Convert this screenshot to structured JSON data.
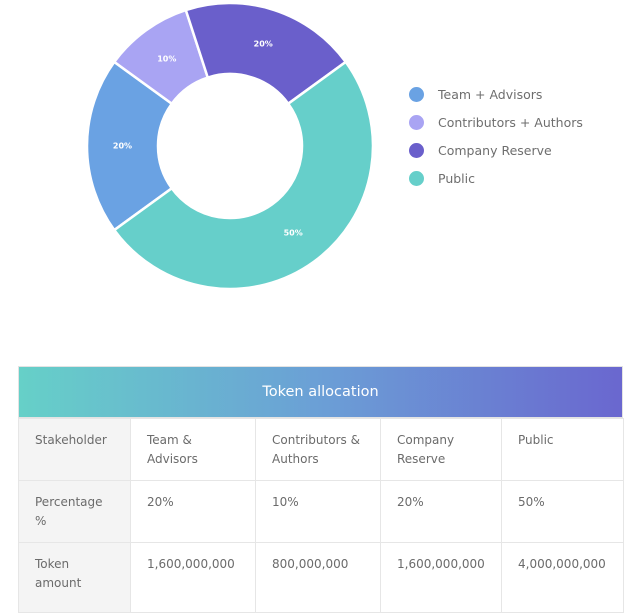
{
  "chart_data": {
    "type": "pie",
    "variant": "donut",
    "categories": [
      "Team + Advisors",
      "Contributors + Authors",
      "Company Reserve",
      "Public"
    ],
    "values": [
      20,
      10,
      20,
      50
    ],
    "labels": [
      "20%",
      "10%",
      "20%",
      "50%"
    ],
    "colors": [
      "#6aa2e3",
      "#a9a4f3",
      "#6a5fcb",
      "#66cfca"
    ],
    "legend_placement": "right"
  },
  "legend": [
    {
      "label": "Team + Advisors",
      "color": "#6aa2e3"
    },
    {
      "label": "Contributors + Authors",
      "color": "#a9a4f3"
    },
    {
      "label": "Company Reserve",
      "color": "#6a5fcb"
    },
    {
      "label": "Public",
      "color": "#66cfca"
    }
  ],
  "table": {
    "title": "Token allocation",
    "rows": [
      {
        "header": "Stakeholder",
        "cells": [
          "Team & Advisors",
          "Contributors & Authors",
          "Company Reserve",
          "Public"
        ]
      },
      {
        "header": "Percentage %",
        "cells": [
          "20%",
          "10%",
          "20%",
          "50%"
        ]
      },
      {
        "header": "Token amount",
        "cells": [
          "1,600,000,000",
          "800,000,000",
          "1,600,000,000",
          "4,000,000,000"
        ]
      }
    ]
  }
}
